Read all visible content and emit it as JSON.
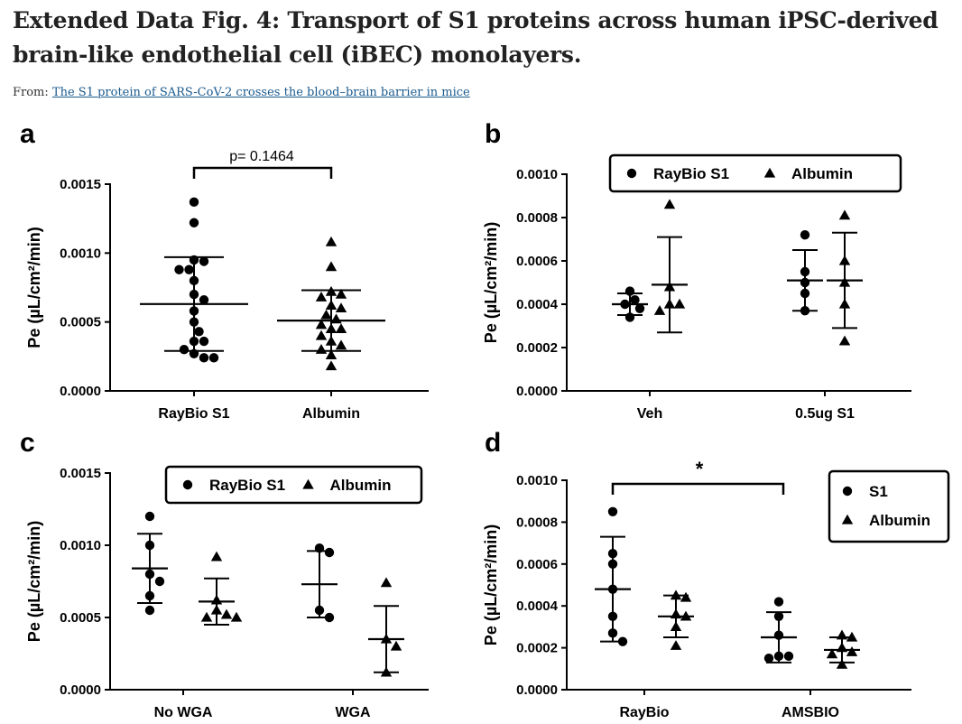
{
  "header": {
    "title": "Extended Data Fig. 4: Transport of S1 proteins across human iPSC-derived brain-like endothelial cell (iBEC) monolayers.",
    "from_label": "From:",
    "from_link": "The S1 protein of SARS-CoV-2 crosses the blood–brain barrier in mice"
  },
  "chart_data": [
    {
      "id": "a",
      "panel_label": "a",
      "type": "scatter",
      "ylabel": "Pe (µL/cm²/min)",
      "ylim": [
        0,
        0.0015
      ],
      "yticks": [
        "0.0000",
        "0.0005",
        "0.0010",
        "0.0015"
      ],
      "categories": [
        "RayBio S1",
        "Albumin"
      ],
      "annotation": "p= 0.1464",
      "series": [
        {
          "name": "RayBio S1",
          "marker": "circle",
          "mean": 0.00063,
          "sd": 0.00034,
          "points": [
            {
              "x": "RayBio S1",
              "y": 0.00137
            },
            {
              "x": "RayBio S1",
              "y": 0.00122
            },
            {
              "x": "RayBio S1",
              "y": 0.00095
            },
            {
              "x": "RayBio S1",
              "y": 0.00094
            },
            {
              "x": "RayBio S1",
              "y": 0.00088
            },
            {
              "x": "RayBio S1",
              "y": 0.00088
            },
            {
              "x": "RayBio S1",
              "y": 0.0008
            },
            {
              "x": "RayBio S1",
              "y": 0.0007
            },
            {
              "x": "RayBio S1",
              "y": 0.00066
            },
            {
              "x": "RayBio S1",
              "y": 0.00058
            },
            {
              "x": "RayBio S1",
              "y": 0.0005
            },
            {
              "x": "RayBio S1",
              "y": 0.00043
            },
            {
              "x": "RayBio S1",
              "y": 0.00036
            },
            {
              "x": "RayBio S1",
              "y": 0.00036
            },
            {
              "x": "RayBio S1",
              "y": 0.0003
            },
            {
              "x": "RayBio S1",
              "y": 0.00027
            },
            {
              "x": "RayBio S1",
              "y": 0.00024
            },
            {
              "x": "RayBio S1",
              "y": 0.00024
            }
          ]
        },
        {
          "name": "Albumin",
          "marker": "triangle",
          "mean": 0.00051,
          "sd": 0.00022,
          "points": [
            {
              "x": "Albumin",
              "y": 0.00108
            },
            {
              "x": "Albumin",
              "y": 0.0009
            },
            {
              "x": "Albumin",
              "y": 0.00072
            },
            {
              "x": "Albumin",
              "y": 0.0007
            },
            {
              "x": "Albumin",
              "y": 0.00068
            },
            {
              "x": "Albumin",
              "y": 0.00062
            },
            {
              "x": "Albumin",
              "y": 0.0006
            },
            {
              "x": "Albumin",
              "y": 0.00055
            },
            {
              "x": "Albumin",
              "y": 0.00052
            },
            {
              "x": "Albumin",
              "y": 0.00048
            },
            {
              "x": "Albumin",
              "y": 0.00045
            },
            {
              "x": "Albumin",
              "y": 0.00045
            },
            {
              "x": "Albumin",
              "y": 0.0004
            },
            {
              "x": "Albumin",
              "y": 0.00036
            },
            {
              "x": "Albumin",
              "y": 0.00033
            },
            {
              "x": "Albumin",
              "y": 0.0003
            },
            {
              "x": "Albumin",
              "y": 0.00026
            },
            {
              "x": "Albumin",
              "y": 0.00018
            }
          ]
        }
      ]
    },
    {
      "id": "b",
      "panel_label": "b",
      "type": "scatter",
      "ylabel": "Pe (µL/cm²/min)",
      "ylim": [
        0,
        0.001
      ],
      "yticks": [
        "0.0000",
        "0.0002",
        "0.0004",
        "0.0006",
        "0.0008",
        "0.0010"
      ],
      "categories": [
        "Veh",
        "0.5ug S1"
      ],
      "legend": {
        "position": "top",
        "layout": "horizontal"
      },
      "series": [
        {
          "name": "RayBio S1",
          "marker": "circle",
          "groups": [
            {
              "category": "Veh",
              "mean": 0.0004,
              "sd": 5e-05,
              "values": [
                0.00046,
                0.00042,
                0.00038,
                0.00034,
                0.0004
              ]
            },
            {
              "category": "0.5ug S1",
              "mean": 0.00051,
              "sd": 0.00014,
              "values": [
                0.00072,
                0.00055,
                0.00045,
                0.00037,
                0.0005
              ]
            }
          ]
        },
        {
          "name": "Albumin",
          "marker": "triangle",
          "groups": [
            {
              "category": "Veh",
              "mean": 0.00049,
              "sd": 0.00022,
              "values": [
                0.00086,
                0.00048,
                0.0004,
                0.0004,
                0.00037
              ]
            },
            {
              "category": "0.5ug S1",
              "mean": 0.00051,
              "sd": 0.00022,
              "values": [
                0.00081,
                0.0006,
                0.0005,
                0.0004,
                0.00023
              ]
            }
          ]
        }
      ]
    },
    {
      "id": "c",
      "panel_label": "c",
      "type": "scatter",
      "ylabel": "Pe (µL/cm²/min)",
      "ylim": [
        0,
        0.0015
      ],
      "yticks": [
        "0.0000",
        "0.0005",
        "0.0010",
        "0.0015"
      ],
      "categories": [
        "No WGA",
        "WGA"
      ],
      "legend": {
        "position": "top",
        "layout": "horizontal"
      },
      "series": [
        {
          "name": "RayBio S1",
          "marker": "circle",
          "groups": [
            {
              "category": "No WGA",
              "mean": 0.00084,
              "sd": 0.00024,
              "values": [
                0.0012,
                0.001,
                0.0008,
                0.00075,
                0.00065,
                0.00055
              ]
            },
            {
              "category": "WGA",
              "mean": 0.00073,
              "sd": 0.00023,
              "values": [
                0.00098,
                0.00095,
                0.00055,
                0.0005
              ]
            }
          ]
        },
        {
          "name": "Albumin",
          "marker": "triangle",
          "groups": [
            {
              "category": "No WGA",
              "mean": 0.00061,
              "sd": 0.00016,
              "values": [
                0.00092,
                0.00062,
                0.00055,
                0.00052,
                0.0005,
                0.0005
              ]
            },
            {
              "category": "WGA",
              "mean": 0.00035,
              "sd": 0.00023,
              "values": [
                0.00074,
                0.00035,
                0.0003,
                0.00012
              ]
            }
          ]
        }
      ]
    },
    {
      "id": "d",
      "panel_label": "d",
      "type": "scatter",
      "ylabel": "Pe (µL/cm²/min)",
      "ylim": [
        0,
        0.001
      ],
      "yticks": [
        "0.0000",
        "0.0002",
        "0.0004",
        "0.0006",
        "0.0008",
        "0.0010"
      ],
      "categories": [
        "RayBio",
        "AMSBIO"
      ],
      "annotation": "*",
      "legend": {
        "position": "top-right",
        "layout": "vertical"
      },
      "series": [
        {
          "name": "S1",
          "marker": "circle",
          "groups": [
            {
              "category": "RayBio",
              "mean": 0.00048,
              "sd": 0.00025,
              "values": [
                0.00085,
                0.00065,
                0.0006,
                0.00048,
                0.00035,
                0.00027,
                0.00023
              ]
            },
            {
              "category": "AMSBIO",
              "mean": 0.00025,
              "sd": 0.00012,
              "values": [
                0.00042,
                0.00035,
                0.00026,
                0.00016,
                0.00016,
                0.00015
              ]
            }
          ]
        },
        {
          "name": "Albumin",
          "marker": "triangle",
          "groups": [
            {
              "category": "RayBio",
              "mean": 0.00035,
              "sd": 0.0001,
              "values": [
                0.00045,
                0.00044,
                0.00036,
                0.00035,
                0.0003,
                0.00021
              ]
            },
            {
              "category": "AMSBIO",
              "mean": 0.00019,
              "sd": 6e-05,
              "values": [
                0.00026,
                0.00025,
                0.0002,
                0.00018,
                0.00017,
                0.00012
              ]
            }
          ]
        }
      ]
    }
  ]
}
